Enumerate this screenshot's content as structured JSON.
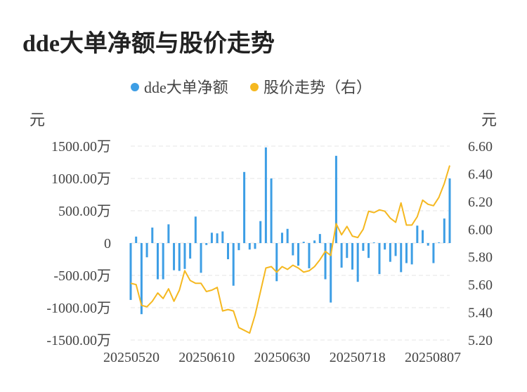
{
  "title": "dde大单净额与股价走势",
  "chart_data": {
    "type": "bar+line",
    "legend": [
      {
        "name": "dde大单净额",
        "color": "#3d9ee5"
      },
      {
        "name": "股价走势（右）",
        "color": "#f5b820"
      }
    ],
    "y_left_unit": "元",
    "y_right_unit": "元",
    "y_left_ticks": [
      "1500.00万",
      "1000.00万",
      "500.00万",
      "0",
      "-500.00万",
      "-1000.00万",
      "-1500.00万"
    ],
    "y_left_range": [
      -1500,
      1500
    ],
    "y_right_ticks": [
      "6.60",
      "6.40",
      "6.20",
      "6.00",
      "5.80",
      "5.60",
      "5.40",
      "5.20"
    ],
    "y_right_range": [
      5.2,
      6.6
    ],
    "x_tick_labels": [
      "20250520",
      "20250610",
      "20250630",
      "20250718",
      "20250807"
    ],
    "bar_values_wan": [
      -880,
      100,
      -1100,
      -220,
      240,
      -560,
      -560,
      290,
      -420,
      -430,
      -400,
      -240,
      410,
      -460,
      -30,
      160,
      150,
      180,
      -250,
      -660,
      -110,
      1100,
      -100,
      -90,
      340,
      1480,
      1000,
      -590,
      160,
      220,
      -190,
      -350,
      20,
      -390,
      40,
      140,
      -560,
      -920,
      1350,
      -380,
      -230,
      -410,
      -600,
      -120,
      -230,
      10,
      -480,
      -100,
      -290,
      -200,
      -450,
      -310,
      -330,
      270,
      200,
      -40,
      -310,
      10,
      380,
      1000
    ],
    "price_values": [
      5.61,
      5.6,
      5.45,
      5.44,
      5.48,
      5.54,
      5.5,
      5.57,
      5.48,
      5.56,
      5.7,
      5.63,
      5.61,
      5.61,
      5.55,
      5.56,
      5.58,
      5.41,
      5.42,
      5.41,
      5.29,
      5.27,
      5.25,
      5.38,
      5.55,
      5.72,
      5.73,
      5.69,
      5.73,
      5.71,
      5.74,
      5.72,
      5.69,
      5.7,
      5.73,
      5.78,
      5.84,
      5.81,
      6.04,
      5.96,
      6.02,
      5.95,
      5.94,
      6.0,
      6.13,
      6.12,
      6.14,
      6.13,
      6.08,
      6.05,
      6.19,
      6.03,
      6.03,
      6.09,
      6.21,
      6.18,
      6.17,
      6.23,
      6.33,
      6.46
    ]
  }
}
